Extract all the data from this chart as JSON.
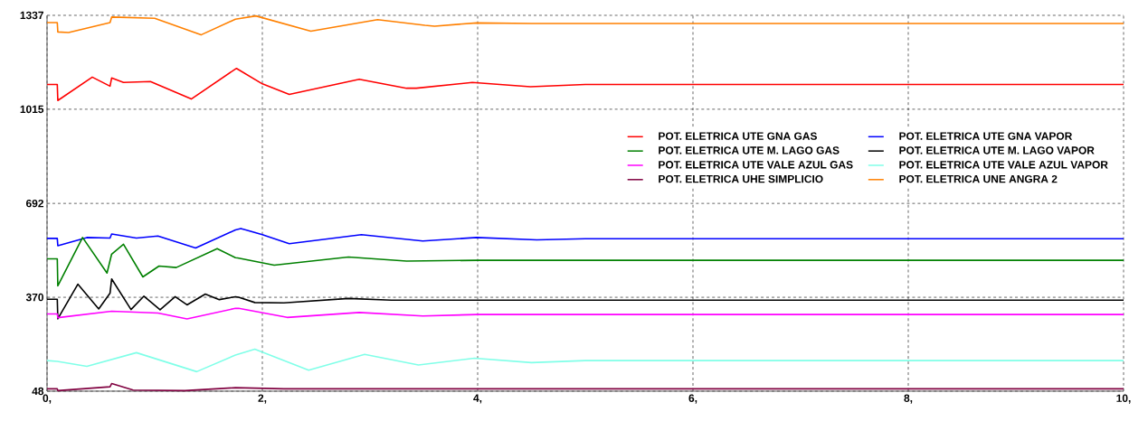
{
  "chart_data": {
    "type": "line",
    "xlim": [
      0,
      10
    ],
    "ylim": [
      48,
      1337
    ],
    "xticks": [
      {
        "value": 0,
        "label": "0,"
      },
      {
        "value": 2,
        "label": "2,"
      },
      {
        "value": 4,
        "label": "4,"
      },
      {
        "value": 6,
        "label": "6,"
      },
      {
        "value": 8,
        "label": "8,"
      },
      {
        "value": 10,
        "label": "10,"
      }
    ],
    "yticks": [
      48,
      370,
      692,
      1015,
      1337
    ],
    "grid": true,
    "legend": "right",
    "line_style": "solid",
    "marker": "none",
    "series": [
      {
        "name": "POT. ELETRICA UTE GNA GAS",
        "color": "#ff0000",
        "x": [
          0,
          0.095,
          0.1,
          0.42,
          0.585,
          0.6,
          0.71,
          0.96,
          1.34,
          1.75,
          1.76,
          2.0,
          2.25,
          2.9,
          3.34,
          3.43,
          3.95,
          4.49,
          5.0,
          10
        ],
        "values": [
          1100,
          1100,
          1045,
          1125,
          1094,
          1122,
          1107,
          1110,
          1050,
          1153,
          1155,
          1102,
          1066,
          1118,
          1087,
          1087,
          1107,
          1092,
          1100,
          1100
        ]
      },
      {
        "name": "POT. ELETRICA UTE GNA VAPOR",
        "color": "#0000ff",
        "x": [
          0,
          0.095,
          0.1,
          0.37,
          0.585,
          0.6,
          0.83,
          1.03,
          1.38,
          1.75,
          1.8,
          2.0,
          2.25,
          2.92,
          3.49,
          3.99,
          4.55,
          5.0,
          10
        ],
        "values": [
          572,
          572,
          547,
          575,
          573,
          587,
          573,
          580,
          539,
          601,
          606,
          585,
          554,
          585,
          563,
          575,
          567,
          571,
          571
        ]
      },
      {
        "name": "POT. ELETRICA UTE M. LAGO GAS",
        "color": "#008000",
        "x": [
          0,
          0.095,
          0.1,
          0.33,
          0.557,
          0.6,
          0.71,
          0.89,
          1.04,
          1.2,
          1.58,
          1.75,
          1.77,
          2.11,
          2.8,
          3.34,
          4.0,
          10
        ],
        "values": [
          502,
          502,
          409,
          575,
          453,
          518,
          552,
          440,
          477,
          472,
          537,
          506,
          505,
          480,
          508,
          494,
          497,
          497
        ]
      },
      {
        "name": "POT. ELETRICA UTE M. LAGO VAPOR",
        "color": "#000000",
        "x": [
          0,
          0.095,
          0.1,
          0.286,
          0.48,
          0.585,
          0.6,
          0.78,
          0.9,
          1.05,
          1.19,
          1.3,
          1.47,
          1.6,
          1.75,
          1.78,
          1.93,
          2.2,
          2.8,
          3.2,
          10
        ],
        "values": [
          363,
          363,
          296,
          415,
          330,
          384,
          433,
          328,
          374,
          327,
          372,
          344,
          381,
          362,
          372,
          370,
          352,
          351,
          366,
          360,
          360
        ]
      },
      {
        "name": "POT. ELETRICA UTE VALE AZUL GAS",
        "color": "#ff00ff",
        "x": [
          0,
          0.095,
          0.1,
          0.6,
          1.03,
          1.3,
          1.75,
          1.78,
          2.23,
          2.9,
          3.49,
          4.0,
          10
        ],
        "values": [
          313,
          313,
          300,
          322,
          316,
          296,
          332,
          332,
          301,
          318,
          306,
          311,
          311
        ]
      },
      {
        "name": "POT. ELETRICA UTE VALE AZUL VAPOR",
        "color": "#80ffe8",
        "x": [
          0,
          0.095,
          0.37,
          0.83,
          1.39,
          1.75,
          1.93,
          2.43,
          2.95,
          3.45,
          3.97,
          4.5,
          5.0,
          10
        ],
        "values": [
          153,
          150,
          133,
          180,
          115,
          172,
          192,
          120,
          174,
          138,
          161,
          146,
          153,
          153
        ]
      },
      {
        "name": "POT. ELETRICA UHE SIMPLICIO",
        "color": "#800040",
        "x": [
          0,
          0.095,
          0.1,
          0.585,
          0.6,
          0.8,
          1.28,
          1.75,
          2.2,
          10
        ],
        "values": [
          56,
          56,
          50,
          63,
          74,
          52,
          50,
          60,
          56,
          56
        ]
      },
      {
        "name": "POT. ELETRICA UNE ANGRA 2",
        "color": "#ff8000",
        "x": [
          0,
          0.095,
          0.1,
          0.2,
          0.585,
          0.6,
          1.0,
          1.43,
          1.75,
          1.94,
          2.45,
          3.07,
          3.51,
          3.6,
          3.99,
          4.5,
          10
        ],
        "values": [
          1312,
          1312,
          1280,
          1278,
          1312,
          1331,
          1327,
          1270,
          1324,
          1335,
          1283,
          1322,
          1303,
          1300,
          1311,
          1309,
          1309
        ]
      }
    ]
  }
}
